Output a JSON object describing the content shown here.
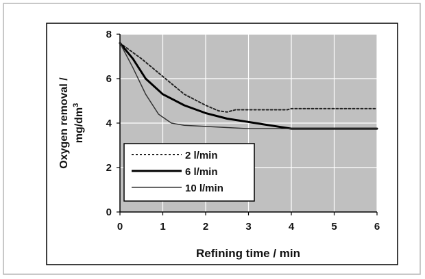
{
  "chart_data": {
    "type": "line",
    "xlabel": "Refining time / min",
    "ylabel_line1": "Oxygen removal /",
    "ylabel_line2": "mg/dm",
    "ylabel_sup": "3",
    "xlim": [
      0,
      6
    ],
    "ylim": [
      0,
      8
    ],
    "x_ticks": [
      0,
      1,
      2,
      3,
      4,
      5,
      6
    ],
    "y_ticks": [
      0,
      2,
      4,
      6,
      8
    ],
    "grid": true,
    "legend_position": "bottom-left",
    "plot_background": "#c0c0c0",
    "series": [
      {
        "name": "2 l/min",
        "style": "dotted",
        "color": "#222222",
        "points": [
          [
            0,
            7.6
          ],
          [
            0.5,
            6.9
          ],
          [
            1,
            6.1
          ],
          [
            1.5,
            5.3
          ],
          [
            2,
            4.8
          ],
          [
            2.3,
            4.55
          ],
          [
            2.5,
            4.5
          ],
          [
            2.7,
            4.6
          ],
          [
            3,
            4.6
          ],
          [
            3.5,
            4.6
          ],
          [
            3.9,
            4.6
          ],
          [
            4,
            4.65
          ],
          [
            5,
            4.65
          ],
          [
            6,
            4.65
          ]
        ]
      },
      {
        "name": "6 l/min",
        "style": "solid-thick",
        "color": "#000000",
        "points": [
          [
            0,
            7.6
          ],
          [
            0.3,
            6.9
          ],
          [
            0.6,
            6.0
          ],
          [
            1,
            5.3
          ],
          [
            1.5,
            4.8
          ],
          [
            2,
            4.45
          ],
          [
            2.5,
            4.2
          ],
          [
            3,
            4.05
          ],
          [
            3.5,
            3.9
          ],
          [
            4,
            3.75
          ],
          [
            5,
            3.75
          ],
          [
            6,
            3.75
          ]
        ]
      },
      {
        "name": "10 l/min",
        "style": "solid-thin",
        "color": "#333333",
        "points": [
          [
            0,
            7.6
          ],
          [
            0.3,
            6.5
          ],
          [
            0.6,
            5.3
          ],
          [
            0.9,
            4.4
          ],
          [
            1.2,
            4.0
          ],
          [
            1.5,
            3.9
          ],
          [
            2,
            3.85
          ],
          [
            3,
            3.75
          ],
          [
            4,
            3.75
          ],
          [
            5,
            3.75
          ],
          [
            6,
            3.75
          ]
        ]
      }
    ]
  }
}
